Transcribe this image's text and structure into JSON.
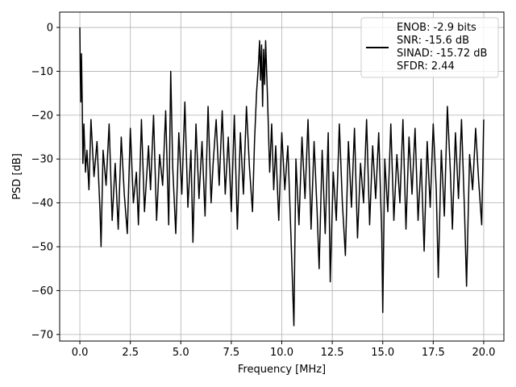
{
  "chart_data": {
    "type": "line",
    "title": "",
    "xlabel": "Frequency [MHz]",
    "ylabel": "PSD [dB]",
    "xlim": [
      -1,
      21
    ],
    "ylim": [
      -71.5,
      3.5
    ],
    "grid": true,
    "legend_placement": "top-right",
    "xticks": [
      0.0,
      2.5,
      5.0,
      7.5,
      10.0,
      12.5,
      15.0,
      17.5,
      20.0
    ],
    "xtick_labels": [
      "0.0",
      "2.5",
      "5.0",
      "7.5",
      "10.0",
      "12.5",
      "15.0",
      "17.5",
      "20.0"
    ],
    "yticks": [
      0,
      -10,
      -20,
      -30,
      -40,
      -50,
      -60,
      -70
    ],
    "ytick_labels": [
      "0",
      "−10",
      "−20",
      "−30",
      "−40",
      "−50",
      "−60",
      "−70"
    ],
    "series": [
      {
        "legend_lines": [
          "ENOB: -2.9 bits",
          "SNR: -15.6 dB",
          "SINAD: -15.72 dB",
          "SFDR: 2.44"
        ],
        "color": "#000000",
        "points": [
          [
            0.0,
            0
          ],
          [
            0.02,
            -10
          ],
          [
            0.05,
            -17
          ],
          [
            0.08,
            -6
          ],
          [
            0.12,
            -18
          ],
          [
            0.15,
            -31
          ],
          [
            0.2,
            -22
          ],
          [
            0.28,
            -33
          ],
          [
            0.35,
            -28
          ],
          [
            0.45,
            -37
          ],
          [
            0.55,
            -21
          ],
          [
            0.7,
            -34
          ],
          [
            0.85,
            -26
          ],
          [
            1.0,
            -42
          ],
          [
            1.05,
            -50
          ],
          [
            1.15,
            -28
          ],
          [
            1.3,
            -36
          ],
          [
            1.45,
            -22
          ],
          [
            1.6,
            -44
          ],
          [
            1.75,
            -31
          ],
          [
            1.9,
            -46
          ],
          [
            2.05,
            -25
          ],
          [
            2.2,
            -38
          ],
          [
            2.35,
            -47
          ],
          [
            2.5,
            -23
          ],
          [
            2.65,
            -40
          ],
          [
            2.8,
            -33
          ],
          [
            2.9,
            -45
          ],
          [
            3.05,
            -21
          ],
          [
            3.2,
            -42
          ],
          [
            3.4,
            -27
          ],
          [
            3.5,
            -37
          ],
          [
            3.65,
            -20
          ],
          [
            3.8,
            -44
          ],
          [
            3.95,
            -29
          ],
          [
            4.1,
            -36
          ],
          [
            4.25,
            -19
          ],
          [
            4.4,
            -45
          ],
          [
            4.5,
            -10
          ],
          [
            4.6,
            -32
          ],
          [
            4.75,
            -47
          ],
          [
            4.9,
            -24
          ],
          [
            5.05,
            -38
          ],
          [
            5.2,
            -17
          ],
          [
            5.35,
            -41
          ],
          [
            5.5,
            -28
          ],
          [
            5.6,
            -49
          ],
          [
            5.75,
            -22
          ],
          [
            5.9,
            -39
          ],
          [
            6.05,
            -26
          ],
          [
            6.2,
            -43
          ],
          [
            6.35,
            -18
          ],
          [
            6.5,
            -40
          ],
          [
            6.6,
            -31
          ],
          [
            6.75,
            -21
          ],
          [
            6.9,
            -36
          ],
          [
            7.05,
            -19
          ],
          [
            7.2,
            -38
          ],
          [
            7.35,
            -25
          ],
          [
            7.5,
            -42
          ],
          [
            7.65,
            -20
          ],
          [
            7.8,
            -46
          ],
          [
            7.95,
            -24
          ],
          [
            8.1,
            -38
          ],
          [
            8.25,
            -18
          ],
          [
            8.4,
            -32
          ],
          [
            8.55,
            -42
          ],
          [
            8.65,
            -26
          ],
          [
            8.75,
            -15
          ],
          [
            8.85,
            -8
          ],
          [
            8.9,
            -3
          ],
          [
            8.95,
            -12
          ],
          [
            9.0,
            -4
          ],
          [
            9.05,
            -18
          ],
          [
            9.1,
            -5
          ],
          [
            9.15,
            -13
          ],
          [
            9.2,
            -3
          ],
          [
            9.3,
            -17
          ],
          [
            9.4,
            -33
          ],
          [
            9.5,
            -22
          ],
          [
            9.6,
            -37
          ],
          [
            9.7,
            -27
          ],
          [
            9.85,
            -44
          ],
          [
            10.0,
            -24
          ],
          [
            10.15,
            -37
          ],
          [
            10.3,
            -27
          ],
          [
            10.45,
            -47
          ],
          [
            10.6,
            -68
          ],
          [
            10.7,
            -30
          ],
          [
            10.85,
            -45
          ],
          [
            11.0,
            -25
          ],
          [
            11.15,
            -39
          ],
          [
            11.3,
            -21
          ],
          [
            11.45,
            -46
          ],
          [
            11.6,
            -26
          ],
          [
            11.75,
            -42
          ],
          [
            11.85,
            -55
          ],
          [
            12.0,
            -28
          ],
          [
            12.15,
            -47
          ],
          [
            12.3,
            -24
          ],
          [
            12.4,
            -58
          ],
          [
            12.55,
            -33
          ],
          [
            12.7,
            -44
          ],
          [
            12.85,
            -22
          ],
          [
            13.0,
            -40
          ],
          [
            13.15,
            -52
          ],
          [
            13.3,
            -26
          ],
          [
            13.45,
            -41
          ],
          [
            13.6,
            -23
          ],
          [
            13.75,
            -48
          ],
          [
            13.9,
            -31
          ],
          [
            14.05,
            -40
          ],
          [
            14.2,
            -21
          ],
          [
            14.35,
            -45
          ],
          [
            14.5,
            -27
          ],
          [
            14.65,
            -39
          ],
          [
            14.8,
            -24
          ],
          [
            14.95,
            -47
          ],
          [
            15.0,
            -65
          ],
          [
            15.1,
            -30
          ],
          [
            15.25,
            -42
          ],
          [
            15.4,
            -22
          ],
          [
            15.55,
            -44
          ],
          [
            15.7,
            -29
          ],
          [
            15.85,
            -40
          ],
          [
            16.0,
            -21
          ],
          [
            16.15,
            -46
          ],
          [
            16.3,
            -25
          ],
          [
            16.45,
            -38
          ],
          [
            16.6,
            -23
          ],
          [
            16.75,
            -44
          ],
          [
            16.9,
            -30
          ],
          [
            17.05,
            -51
          ],
          [
            17.2,
            -26
          ],
          [
            17.35,
            -41
          ],
          [
            17.5,
            -22
          ],
          [
            17.65,
            -37
          ],
          [
            17.75,
            -57
          ],
          [
            17.9,
            -28
          ],
          [
            18.05,
            -43
          ],
          [
            18.2,
            -18
          ],
          [
            18.35,
            -33
          ],
          [
            18.45,
            -46
          ],
          [
            18.6,
            -24
          ],
          [
            18.75,
            -39
          ],
          [
            18.9,
            -21
          ],
          [
            19.05,
            -42
          ],
          [
            19.15,
            -59
          ],
          [
            19.3,
            -29
          ],
          [
            19.45,
            -37
          ],
          [
            19.6,
            -23
          ],
          [
            19.75,
            -35
          ],
          [
            19.9,
            -45
          ],
          [
            20.0,
            -21
          ]
        ]
      }
    ]
  }
}
